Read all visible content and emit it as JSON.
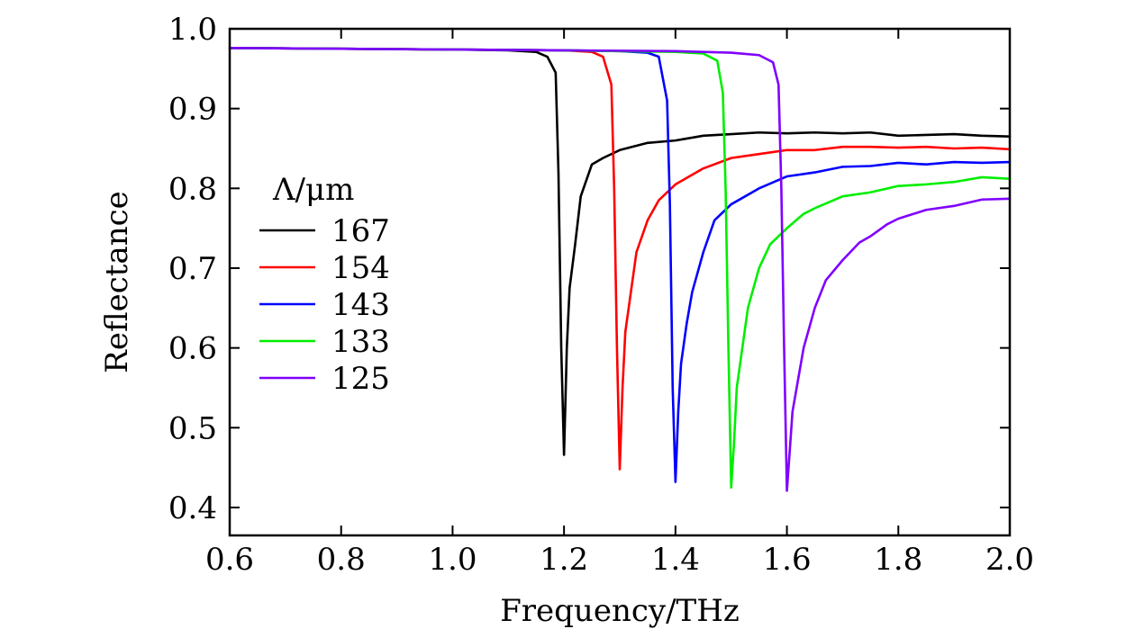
{
  "chart_data": {
    "type": "line",
    "title": "",
    "xlabel": "Frequency/THz",
    "ylabel": "Reflectance",
    "xlim": [
      0.6,
      2.0
    ],
    "ylim": [
      0.365,
      1.0
    ],
    "xticks": [
      0.6,
      0.8,
      1.0,
      1.2,
      1.4,
      1.6,
      1.8,
      2.0
    ],
    "xtick_labels": [
      "0.6",
      "0.8",
      "1.0",
      "1.2",
      "1.4",
      "1.6",
      "1.8",
      "2.0"
    ],
    "yticks": [
      0.4,
      0.5,
      0.6,
      0.7,
      0.8,
      0.9,
      1.0
    ],
    "ytick_labels": [
      "0.4",
      "0.5",
      "0.6",
      "0.7",
      "0.8",
      "0.9",
      "1.0"
    ],
    "legend": {
      "title": "Λ/μm",
      "placement": "middle-left"
    },
    "series": [
      {
        "name": "167",
        "color": "#000000",
        "points": [
          [
            0.6,
            0.976
          ],
          [
            0.8,
            0.975
          ],
          [
            1.0,
            0.974
          ],
          [
            1.1,
            0.973
          ],
          [
            1.15,
            0.971
          ],
          [
            1.17,
            0.965
          ],
          [
            1.185,
            0.945
          ],
          [
            1.19,
            0.82
          ],
          [
            1.195,
            0.6
          ],
          [
            1.2,
            0.466
          ],
          [
            1.205,
            0.6
          ],
          [
            1.21,
            0.675
          ],
          [
            1.22,
            0.73
          ],
          [
            1.23,
            0.79
          ],
          [
            1.25,
            0.83
          ],
          [
            1.27,
            0.838
          ],
          [
            1.3,
            0.848
          ],
          [
            1.35,
            0.857
          ],
          [
            1.4,
            0.86
          ],
          [
            1.45,
            0.866
          ],
          [
            1.5,
            0.868
          ],
          [
            1.55,
            0.87
          ],
          [
            1.6,
            0.869
          ],
          [
            1.65,
            0.87
          ],
          [
            1.7,
            0.869
          ],
          [
            1.75,
            0.87
          ],
          [
            1.8,
            0.866
          ],
          [
            1.85,
            0.867
          ],
          [
            1.9,
            0.868
          ],
          [
            1.95,
            0.866
          ],
          [
            2.0,
            0.865
          ]
        ]
      },
      {
        "name": "154",
        "color": "#ff0000",
        "points": [
          [
            0.6,
            0.976
          ],
          [
            0.8,
            0.975
          ],
          [
            1.0,
            0.974
          ],
          [
            1.2,
            0.973
          ],
          [
            1.25,
            0.971
          ],
          [
            1.27,
            0.965
          ],
          [
            1.285,
            0.93
          ],
          [
            1.29,
            0.8
          ],
          [
            1.295,
            0.6
          ],
          [
            1.3,
            0.448
          ],
          [
            1.305,
            0.55
          ],
          [
            1.31,
            0.62
          ],
          [
            1.32,
            0.67
          ],
          [
            1.33,
            0.72
          ],
          [
            1.35,
            0.76
          ],
          [
            1.37,
            0.785
          ],
          [
            1.4,
            0.805
          ],
          [
            1.45,
            0.825
          ],
          [
            1.5,
            0.838
          ],
          [
            1.55,
            0.843
          ],
          [
            1.6,
            0.848
          ],
          [
            1.65,
            0.848
          ],
          [
            1.7,
            0.852
          ],
          [
            1.75,
            0.852
          ],
          [
            1.8,
            0.851
          ],
          [
            1.85,
            0.852
          ],
          [
            1.9,
            0.85
          ],
          [
            1.95,
            0.851
          ],
          [
            2.0,
            0.849
          ]
        ]
      },
      {
        "name": "143",
        "color": "#0000ff",
        "points": [
          [
            0.6,
            0.976
          ],
          [
            0.8,
            0.975
          ],
          [
            1.0,
            0.974
          ],
          [
            1.2,
            0.973
          ],
          [
            1.3,
            0.972
          ],
          [
            1.35,
            0.97
          ],
          [
            1.37,
            0.965
          ],
          [
            1.385,
            0.91
          ],
          [
            1.39,
            0.78
          ],
          [
            1.395,
            0.55
          ],
          [
            1.4,
            0.432
          ],
          [
            1.405,
            0.52
          ],
          [
            1.41,
            0.58
          ],
          [
            1.42,
            0.63
          ],
          [
            1.43,
            0.67
          ],
          [
            1.45,
            0.72
          ],
          [
            1.47,
            0.76
          ],
          [
            1.5,
            0.78
          ],
          [
            1.55,
            0.8
          ],
          [
            1.6,
            0.815
          ],
          [
            1.65,
            0.82
          ],
          [
            1.7,
            0.827
          ],
          [
            1.75,
            0.828
          ],
          [
            1.8,
            0.832
          ],
          [
            1.85,
            0.83
          ],
          [
            1.9,
            0.833
          ],
          [
            1.95,
            0.832
          ],
          [
            2.0,
            0.833
          ]
        ]
      },
      {
        "name": "133",
        "color": "#00ee00",
        "points": [
          [
            0.6,
            0.976
          ],
          [
            0.8,
            0.975
          ],
          [
            1.0,
            0.974
          ],
          [
            1.2,
            0.973
          ],
          [
            1.4,
            0.971
          ],
          [
            1.45,
            0.969
          ],
          [
            1.475,
            0.96
          ],
          [
            1.485,
            0.92
          ],
          [
            1.49,
            0.8
          ],
          [
            1.495,
            0.6
          ],
          [
            1.5,
            0.425
          ],
          [
            1.505,
            0.48
          ],
          [
            1.51,
            0.55
          ],
          [
            1.52,
            0.6
          ],
          [
            1.53,
            0.65
          ],
          [
            1.55,
            0.7
          ],
          [
            1.57,
            0.73
          ],
          [
            1.6,
            0.75
          ],
          [
            1.63,
            0.768
          ],
          [
            1.65,
            0.775
          ],
          [
            1.7,
            0.79
          ],
          [
            1.75,
            0.795
          ],
          [
            1.8,
            0.803
          ],
          [
            1.85,
            0.805
          ],
          [
            1.9,
            0.808
          ],
          [
            1.95,
            0.814
          ],
          [
            2.0,
            0.812
          ]
        ]
      },
      {
        "name": "125",
        "color": "#8000ff",
        "points": [
          [
            0.6,
            0.976
          ],
          [
            0.8,
            0.975
          ],
          [
            1.0,
            0.974
          ],
          [
            1.2,
            0.973
          ],
          [
            1.4,
            0.972
          ],
          [
            1.5,
            0.97
          ],
          [
            1.55,
            0.967
          ],
          [
            1.575,
            0.958
          ],
          [
            1.585,
            0.93
          ],
          [
            1.59,
            0.8
          ],
          [
            1.595,
            0.6
          ],
          [
            1.6,
            0.421
          ],
          [
            1.605,
            0.47
          ],
          [
            1.61,
            0.52
          ],
          [
            1.62,
            0.56
          ],
          [
            1.63,
            0.6
          ],
          [
            1.65,
            0.65
          ],
          [
            1.67,
            0.685
          ],
          [
            1.7,
            0.71
          ],
          [
            1.73,
            0.732
          ],
          [
            1.75,
            0.74
          ],
          [
            1.78,
            0.755
          ],
          [
            1.8,
            0.762
          ],
          [
            1.85,
            0.773
          ],
          [
            1.9,
            0.778
          ],
          [
            1.95,
            0.786
          ],
          [
            2.0,
            0.787
          ]
        ]
      }
    ]
  }
}
